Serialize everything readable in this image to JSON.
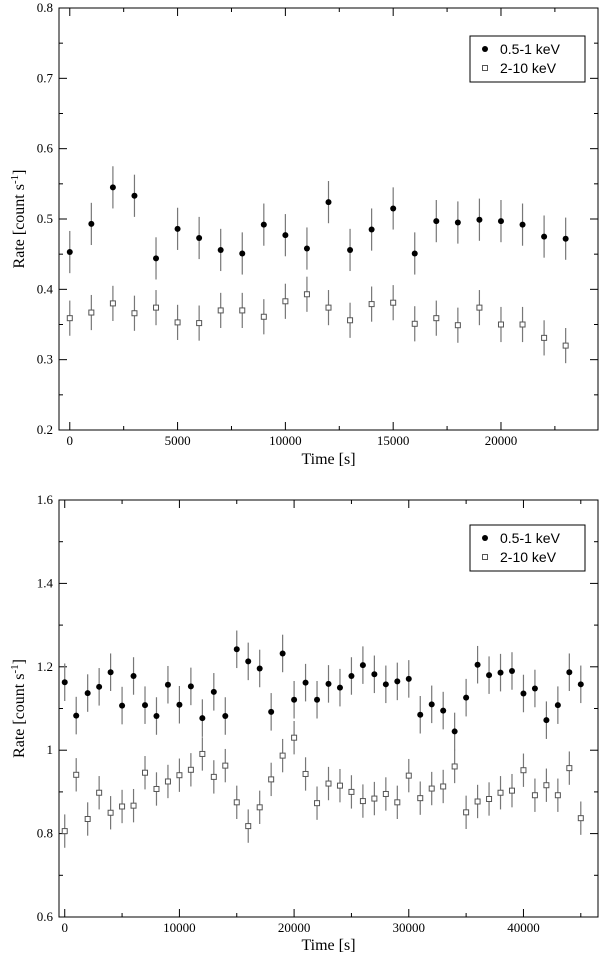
{
  "chart_data": [
    {
      "type": "scatter",
      "xlabel": "Time [s]",
      "ylabel_main": "Rate [count s",
      "ylabel_sup": "-1",
      "ylabel_close": "]",
      "xlim": [
        -500,
        24500
      ],
      "ylim": [
        0.2,
        0.8
      ],
      "xticks": [
        0,
        5000,
        10000,
        15000,
        20000
      ],
      "yticks": [
        0.2,
        0.3,
        0.4,
        0.5,
        0.6,
        0.7,
        0.8
      ],
      "ytick_labels": [
        "0.2",
        "0.3",
        "0.4",
        "0.5",
        "0.6",
        "0.7",
        "0.8"
      ],
      "legend_position": "top-right",
      "series": [
        {
          "name": "0.5-1 keV",
          "marker": "filled-circle",
          "x": [
            0,
            1000,
            2000,
            3000,
            4000,
            5000,
            6000,
            7000,
            8000,
            9000,
            10000,
            11000,
            12000,
            13000,
            14000,
            15000,
            16000,
            17000,
            18000,
            19000,
            20000,
            21000,
            22000,
            23000
          ],
          "y": [
            0.453,
            0.493,
            0.545,
            0.533,
            0.444,
            0.486,
            0.473,
            0.456,
            0.451,
            0.492,
            0.477,
            0.458,
            0.524,
            0.456,
            0.485,
            0.515,
            0.451,
            0.497,
            0.495,
            0.499,
            0.497,
            0.492,
            0.475,
            0.472
          ],
          "err": 0.03
        },
        {
          "name": "2-10 keV",
          "marker": "open-square",
          "x": [
            0,
            1000,
            2000,
            3000,
            4000,
            5000,
            6000,
            7000,
            8000,
            9000,
            10000,
            11000,
            12000,
            13000,
            14000,
            15000,
            16000,
            17000,
            18000,
            19000,
            20000,
            21000,
            22000,
            23000
          ],
          "y": [
            0.359,
            0.367,
            0.38,
            0.366,
            0.374,
            0.353,
            0.352,
            0.37,
            0.37,
            0.361,
            0.383,
            0.393,
            0.374,
            0.356,
            0.379,
            0.381,
            0.351,
            0.359,
            0.349,
            0.374,
            0.35,
            0.35,
            0.331,
            0.32
          ],
          "err": 0.025
        }
      ]
    },
    {
      "type": "scatter",
      "xlabel": "Time [s]",
      "ylabel_main": "Rate [count s",
      "ylabel_sup": "-1",
      "ylabel_close": "]",
      "xlim": [
        -500,
        46500
      ],
      "ylim": [
        0.6,
        1.6
      ],
      "xticks": [
        0,
        10000,
        20000,
        30000,
        40000
      ],
      "yticks": [
        0.6,
        0.8,
        1.0,
        1.2,
        1.4,
        1.6
      ],
      "ytick_labels": [
        "0.6",
        "0.8",
        "1",
        "1.2",
        "1.4",
        "1.6"
      ],
      "legend_position": "top-right",
      "series": [
        {
          "name": "0.5-1 keV",
          "marker": "filled-circle",
          "x": [
            0,
            1000,
            2000,
            3000,
            4000,
            5000,
            6000,
            7000,
            8000,
            9000,
            10000,
            11000,
            12000,
            13000,
            14000,
            15000,
            16000,
            17000,
            18000,
            19000,
            20000,
            21000,
            22000,
            23000,
            24000,
            25000,
            26000,
            27000,
            28000,
            29000,
            30000,
            31000,
            32000,
            33000,
            34000,
            35000,
            36000,
            37000,
            38000,
            39000,
            40000,
            41000,
            42000,
            43000,
            44000,
            45000
          ],
          "y": [
            1.163,
            1.083,
            1.137,
            1.152,
            1.187,
            1.107,
            1.178,
            1.108,
            1.082,
            1.157,
            1.109,
            1.153,
            1.077,
            1.14,
            1.082,
            1.242,
            1.213,
            1.196,
            1.092,
            1.232,
            1.121,
            1.162,
            1.121,
            1.159,
            1.15,
            1.178,
            1.204,
            1.182,
            1.158,
            1.165,
            1.171,
            1.085,
            1.11,
            1.095,
            1.045,
            1.126,
            1.205,
            1.18,
            1.186,
            1.19,
            1.136,
            1.148,
            1.072,
            1.108,
            1.187,
            1.158
          ],
          "err": 0.045
        },
        {
          "name": "2-10 keV",
          "marker": "open-square",
          "x": [
            0,
            1000,
            2000,
            3000,
            4000,
            5000,
            6000,
            7000,
            8000,
            9000,
            10000,
            11000,
            12000,
            13000,
            14000,
            15000,
            16000,
            17000,
            18000,
            19000,
            20000,
            21000,
            22000,
            23000,
            24000,
            25000,
            26000,
            27000,
            28000,
            29000,
            30000,
            31000,
            32000,
            33000,
            34000,
            35000,
            36000,
            37000,
            38000,
            39000,
            40000,
            41000,
            42000,
            43000,
            44000,
            45000
          ],
          "y": [
            0.806,
            0.941,
            0.835,
            0.898,
            0.85,
            0.865,
            0.867,
            0.946,
            0.907,
            0.925,
            0.94,
            0.953,
            0.991,
            0.936,
            0.963,
            0.875,
            0.818,
            0.863,
            0.93,
            0.987,
            1.03,
            0.943,
            0.873,
            0.92,
            0.915,
            0.9,
            0.878,
            0.884,
            0.895,
            0.875,
            0.939,
            0.885,
            0.908,
            0.913,
            0.961,
            0.851,
            0.877,
            0.883,
            0.898,
            0.903,
            0.952,
            0.892,
            0.916,
            0.892,
            0.957,
            0.837
          ],
          "err": 0.04
        }
      ]
    }
  ]
}
